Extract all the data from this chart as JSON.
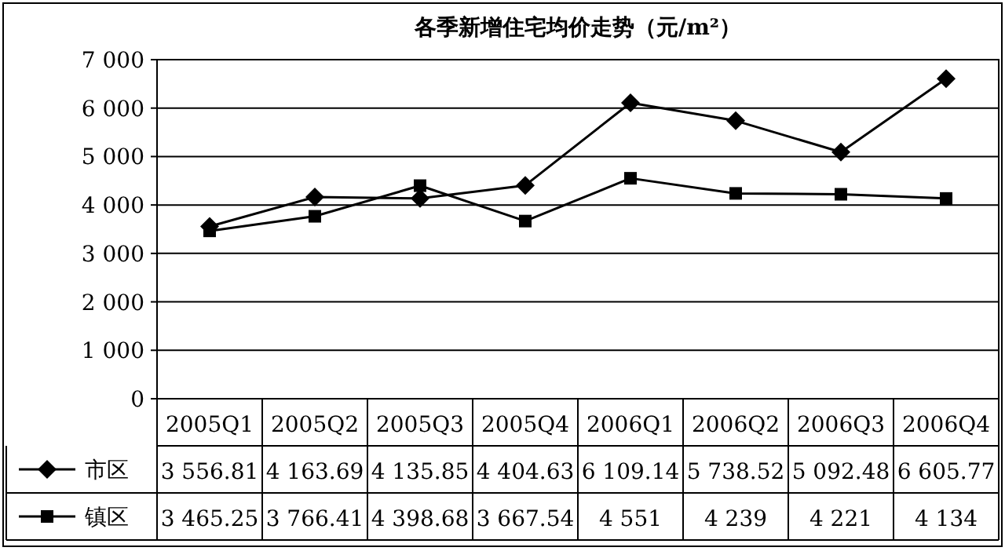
{
  "chart_data": {
    "type": "line",
    "title": "各季新增住宅均价走势（元/m²）",
    "categories": [
      "2005Q1",
      "2005Q2",
      "2005Q3",
      "2005Q4",
      "2006Q1",
      "2006Q2",
      "2006Q3",
      "2006Q4"
    ],
    "series": [
      {
        "name": "市区",
        "color": "#000000",
        "marker": "diamond",
        "values": [
          3556.81,
          4163.69,
          4135.85,
          4404.63,
          6109.14,
          5738.52,
          5092.48,
          6605.77
        ],
        "value_labels": [
          "3 556.81",
          "4 163.69",
          "4 135.85",
          "4 404.63",
          "6 109.14",
          "5 738.52",
          "5 092.48",
          "6 605.77"
        ]
      },
      {
        "name": "镇区",
        "color": "#000000",
        "marker": "square",
        "values": [
          3465.25,
          3766.41,
          4398.68,
          3667.54,
          4551,
          4239,
          4221,
          4134
        ],
        "value_labels": [
          "3 465.25",
          "3 766.41",
          "4 398.68",
          "3 667.54",
          "4 551",
          "4 239",
          "4 221",
          "4 134"
        ]
      }
    ],
    "ylim": [
      0,
      7000
    ],
    "yticks": [
      0,
      {
        "value": 1000,
        "label": "1 000"
      },
      {
        "value": 2000,
        "label": "2 000"
      },
      {
        "value": 3000,
        "label": "3 000"
      },
      {
        "value": 4000,
        "label": "4 000"
      },
      {
        "value": 5000,
        "label": "5 000"
      },
      {
        "value": 6000,
        "label": "6 000"
      },
      {
        "value": 7000,
        "label": "7 000"
      }
    ],
    "grid": "y",
    "legend": "bottom left",
    "line_style": "solid"
  }
}
